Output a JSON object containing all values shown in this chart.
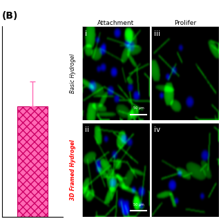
{
  "panel_label": "(B)",
  "col_headers": [
    "Attachment",
    "Prolifer"
  ],
  "row_labels": [
    "Basic Hydrogel",
    "3D Framed Hydrogel"
  ],
  "row_label_colors": [
    "black",
    "red"
  ],
  "bar_value": 0.58,
  "bar_error": 0.13,
  "bar_color": "#FF69B4",
  "bar_hatch": "xxx",
  "bar_edge_color": "#CC0066",
  "scale_bar_text": "50 μm",
  "background_color": "white",
  "figsize": [
    3.2,
    3.2
  ],
  "dpi": 100
}
